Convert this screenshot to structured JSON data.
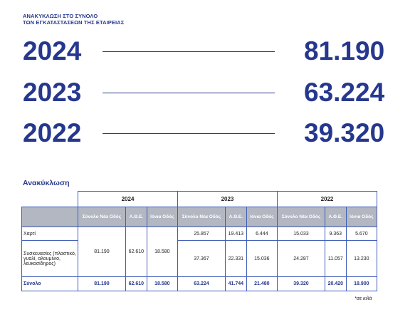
{
  "heading": {
    "line1": "ΑΝΑΚΥΚΛΩΣΗ ΣΤΟ ΣΥΝΟΛΟ",
    "line2": "ΤΩΝ ΕΓΚΑΤΑΣΤΑΣΕΩΝ ΤΗΣ ΕΤΑΙΡΕΙΑΣ"
  },
  "totals": [
    {
      "year": "2024",
      "value": "81.190"
    },
    {
      "year": "2023",
      "value": "63.224"
    },
    {
      "year": "2022",
      "value": "39.320"
    }
  ],
  "table": {
    "title": "Ανακύκλωση",
    "years": [
      "2024",
      "2023",
      "2022"
    ],
    "subheaders": [
      "Σύνολο Νέα Οδός",
      "Α.Θ.Ε.",
      "Ιόνια Οδός"
    ],
    "rows": [
      [
        "Χαρτί",
        "81.190",
        "62.610",
        "18.580",
        "25.857",
        "19.413",
        "6.444",
        "15.033",
        "9.363",
        "5.670"
      ],
      [
        "Συσκευασίες (πλαστικό, γυαλί, αλουμίνιο, λευκοσίδηρος)",
        "37.367",
        "22.331",
        "15.036",
        "24.287",
        "11.057",
        "13.230"
      ],
      [
        "Σύνολο",
        "81.190",
        "62.610",
        "18.580",
        "63.224",
        "41.744",
        "21.480",
        "39.320",
        "20.420",
        "18.900"
      ]
    ],
    "footnote": "*σε κιλά"
  }
}
